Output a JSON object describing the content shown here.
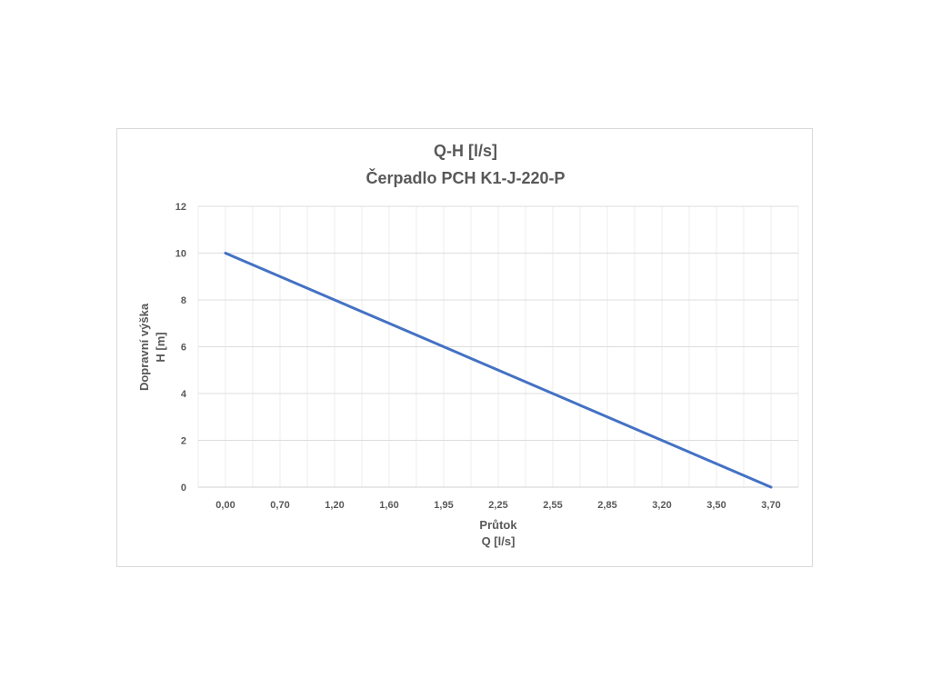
{
  "chart_data": {
    "type": "line",
    "title": "Q-H  [l/s]",
    "subtitle": "Čerpadlo PCH K1-J-220-P",
    "xlabel_line1": "Průtok",
    "xlabel_line2": "Q [l/s]",
    "ylabel_line1": "Dopravní výška",
    "ylabel_line2": "H [m]",
    "categories": [
      "0,00",
      "0,70",
      "1,20",
      "1,60",
      "1,95",
      "2,25",
      "2,55",
      "2,85",
      "3,20",
      "3,50",
      "3,70"
    ],
    "y_ticks": [
      "0",
      "2",
      "4",
      "6",
      "8",
      "10",
      "12"
    ],
    "ylim": [
      0,
      12
    ],
    "grid": true,
    "series": [
      {
        "values": [
          10,
          9,
          8,
          7,
          6,
          5,
          4,
          3,
          2,
          1,
          0
        ],
        "color": "#4472c4"
      }
    ]
  }
}
